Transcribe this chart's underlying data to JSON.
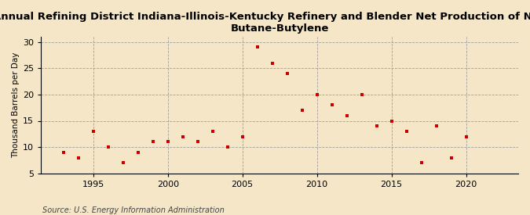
{
  "title": "Annual Refining District Indiana-Illinois-Kentucky Refinery and Blender Net Production of Normal\nButane-Butylene",
  "ylabel": "Thousand Barrels per Day",
  "source": "Source: U.S. Energy Information Administration",
  "background_color": "#f5e6c8",
  "plot_background_color": "#f5e6c8",
  "dot_color": "#cc0000",
  "years": [
    1993,
    1994,
    1995,
    1996,
    1997,
    1998,
    1999,
    2000,
    2001,
    2002,
    2003,
    2004,
    2005,
    2006,
    2007,
    2008,
    2009,
    2010,
    2011,
    2012,
    2013,
    2014,
    2015,
    2016,
    2017,
    2018,
    2019,
    2020,
    2021
  ],
  "values": [
    9,
    8,
    13,
    10,
    7,
    9,
    11,
    11,
    12,
    11,
    13,
    10,
    12,
    29,
    26,
    24,
    17,
    20,
    18,
    16,
    20,
    14,
    15,
    13,
    7,
    14,
    8,
    12,
    null
  ],
  "xlim": [
    1991.5,
    2023.5
  ],
  "ylim": [
    5,
    31
  ],
  "yticks": [
    5,
    10,
    15,
    20,
    25,
    30
  ],
  "xticks": [
    1995,
    2000,
    2005,
    2010,
    2015,
    2020
  ],
  "title_fontsize": 9.5,
  "ylabel_fontsize": 7.5,
  "tick_fontsize": 8,
  "source_fontsize": 7
}
